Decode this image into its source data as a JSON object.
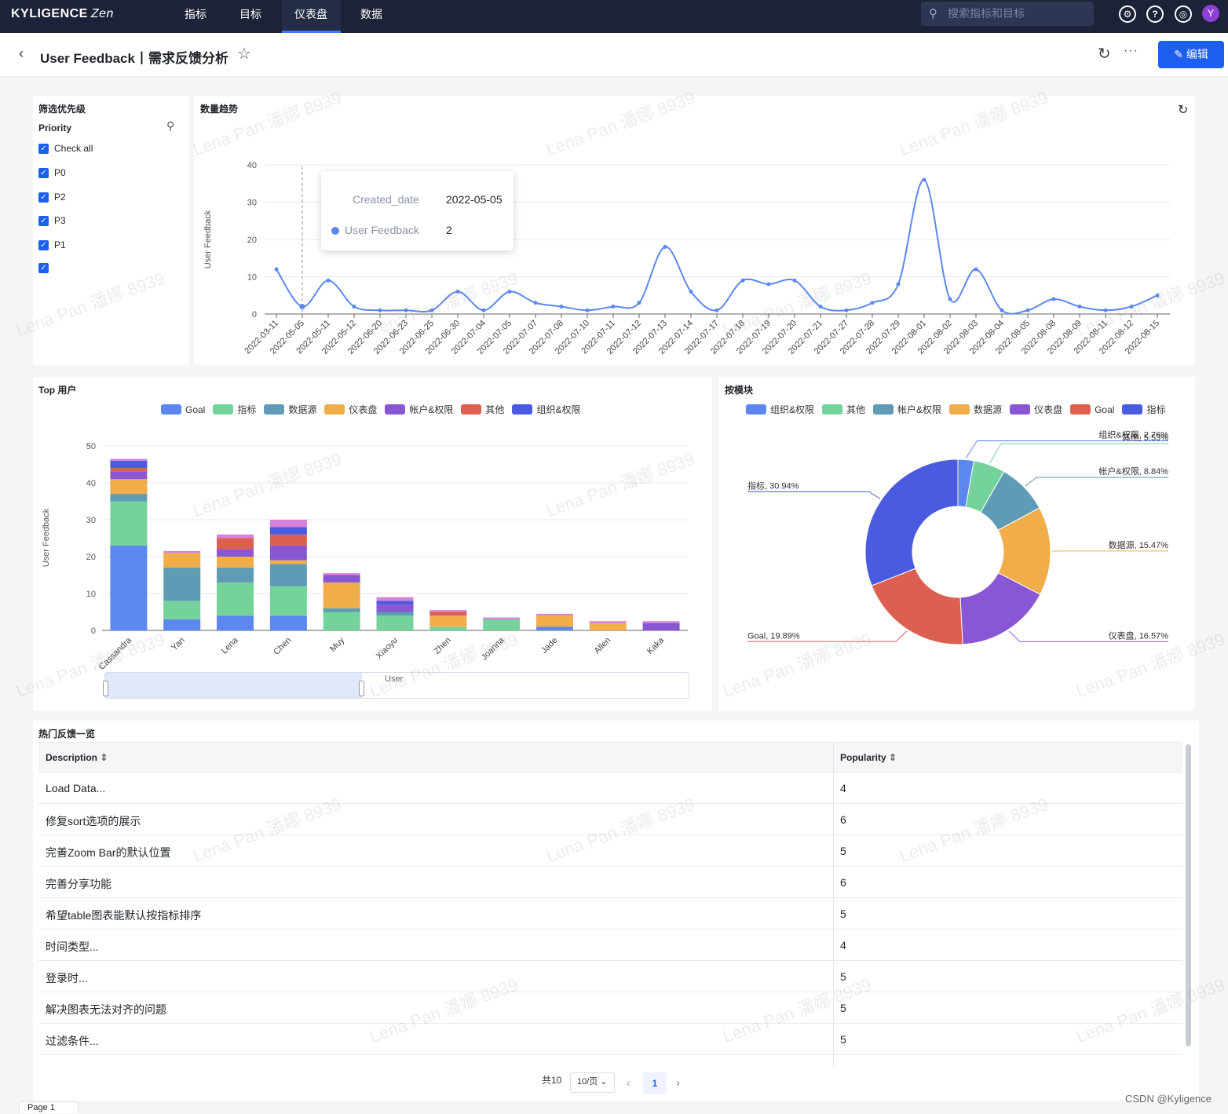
{
  "app": {
    "logo": "KYLIGENCE",
    "logo_sub": "Zen"
  },
  "nav": {
    "tabs": [
      "指标",
      "目标",
      "仪表盘",
      "数据"
    ],
    "active": 2,
    "search_placeholder": "搜索指标和目标",
    "avatar": "Y"
  },
  "header": {
    "title": "User Feedback丨需求反馈分析",
    "edit_label": "编辑"
  },
  "filter": {
    "title": "筛选优先级",
    "field": "Priority",
    "items": [
      "Check all",
      "P0",
      "P2",
      "P3",
      "P1",
      ""
    ]
  },
  "trend": {
    "title": "数量趋势",
    "tooltip": {
      "key1": "Created_date",
      "value1": "2022-05-05",
      "key2": "User Feedback",
      "value2": "2"
    }
  },
  "top_users": {
    "title": "Top 用户",
    "x_caption": "User"
  },
  "modules": {
    "title": "按模块"
  },
  "table": {
    "title": "热门反馈一览",
    "columns": [
      "Description",
      "Popularity"
    ],
    "rows": [
      [
        "Load Data...",
        "4"
      ],
      [
        "修复sort选项的展示",
        "6"
      ],
      [
        "完善Zoom Bar的默认位置",
        "5"
      ],
      [
        "完善分享功能",
        "6"
      ],
      [
        "希望table图表能默认按指标排序",
        "5"
      ],
      [
        "时间类型...",
        "4"
      ],
      [
        "登录时...",
        "5"
      ],
      [
        "解决图表无法对齐的问题",
        "5"
      ],
      [
        "过滤条件...",
        "5"
      ]
    ]
  },
  "pagination": {
    "total": "共10",
    "page_size": "10/页",
    "current": "1"
  },
  "footer": {
    "sheet_tab": "Page 1",
    "credit": "CSDN @Kyligence"
  },
  "watermark_text": "Lena Pan 潘娜 8939",
  "colors": {
    "accent": "#1d5ff0",
    "nav_bg": "#1c2238"
  },
  "chart_data": [
    {
      "type": "line",
      "title": "数量趋势",
      "ylabel": "User Feedback",
      "ylim": [
        0,
        40
      ],
      "yticks": [
        0,
        10,
        20,
        30,
        40
      ],
      "x": [
        "2022-03-11",
        "2022-05-05",
        "2022-05-11",
        "2022-05-12",
        "2022-06-20",
        "2022-06-23",
        "2022-06-25",
        "2022-06-30",
        "2022-07-04",
        "2022-07-05",
        "2022-07-07",
        "2022-07-08",
        "2022-07-10",
        "2022-07-11",
        "2022-07-12",
        "2022-07-13",
        "2022-07-14",
        "2022-07-17",
        "2022-07-18",
        "2022-07-19",
        "2022-07-20",
        "2022-07-21",
        "2022-07-27",
        "2022-07-28",
        "2022-07-29",
        "2022-08-01",
        "2022-08-02",
        "2022-08-03",
        "2022-08-04",
        "2022-08-05",
        "2022-08-08",
        "2022-08-09",
        "2022-08-11",
        "2022-08-12",
        "2022-08-15"
      ],
      "series": [
        {
          "name": "User Feedback",
          "color": "#5b87ee",
          "values": [
            12,
            2,
            9,
            2,
            1,
            1,
            1,
            6,
            1,
            6,
            3,
            2,
            1,
            2,
            3,
            18,
            6,
            1,
            9,
            8,
            9,
            2,
            1,
            3,
            8,
            36,
            4,
            12,
            1,
            1,
            4,
            2,
            1,
            2,
            5
          ]
        }
      ]
    },
    {
      "type": "bar",
      "stacked": true,
      "title": "Top 用户",
      "xlabel": "User",
      "ylabel": "User Feedback",
      "ylim": [
        0,
        50
      ],
      "yticks": [
        0,
        10,
        20,
        30,
        40,
        50
      ],
      "categories": [
        "Cassandra",
        "Yan",
        "Lena",
        "Chen",
        "Muy",
        "Xiaoyu",
        "Zhen",
        "Joanna",
        "Jade",
        "Allen",
        "Kaka"
      ],
      "series": [
        {
          "name": "Goal",
          "color": "#5b87ee",
          "values": [
            23,
            3,
            4,
            4,
            0,
            0,
            0,
            0,
            1,
            0,
            0
          ]
        },
        {
          "name": "指标",
          "color": "#74d39b",
          "values": [
            12,
            5,
            9,
            8,
            5,
            4,
            1,
            3,
            0,
            0,
            0
          ]
        },
        {
          "name": "数据源",
          "color": "#5f9bb5",
          "values": [
            2,
            9,
            4,
            6,
            1,
            1,
            0,
            0,
            0,
            0,
            0
          ]
        },
        {
          "name": "仪表盘",
          "color": "#f0ad4a",
          "values": [
            4,
            4,
            3,
            1,
            7,
            0,
            3,
            0,
            3,
            2,
            0
          ]
        },
        {
          "name": "帐户&权限",
          "color": "#8a57d4",
          "values": [
            2,
            0,
            2,
            4,
            2,
            2,
            0,
            0,
            0,
            0,
            2
          ]
        },
        {
          "name": "其他",
          "color": "#dd5f50",
          "values": [
            1,
            0,
            3,
            3,
            0,
            0,
            1,
            0,
            0,
            0,
            0
          ]
        },
        {
          "name": "组织&权限",
          "color": "#4b5be0",
          "values": [
            2,
            0,
            0,
            2,
            0,
            1,
            0,
            0,
            0,
            0,
            0
          ]
        },
        {
          "name": "",
          "color": "#d980d8",
          "values": [
            0.5,
            0.5,
            1,
            2,
            0.5,
            1,
            0.5,
            0.5,
            0.5,
            0.5,
            0.5
          ]
        }
      ]
    },
    {
      "type": "pie",
      "donut": true,
      "title": "按模块",
      "legend": [
        "组织&权限",
        "其他",
        "帐户&权限",
        "数据源",
        "仪表盘",
        "Goal",
        "指标"
      ],
      "slices": [
        {
          "name": "组织&权限",
          "value": 2.76,
          "label": "组织&权限, 2.76%",
          "color": "#5b87ee"
        },
        {
          "name": "其他",
          "value": 5.53,
          "label": "其他, 5.53%",
          "color": "#74d39b"
        },
        {
          "name": "帐户&权限",
          "value": 8.84,
          "label": "帐户&权限, 8.84%",
          "color": "#5f9bb5"
        },
        {
          "name": "数据源",
          "value": 15.47,
          "label": "数据源, 15.47%",
          "color": "#f0ad4a"
        },
        {
          "name": "仪表盘",
          "value": 16.57,
          "label": "仪表盘, 16.57%",
          "color": "#8a57d4"
        },
        {
          "name": "Goal",
          "value": 19.89,
          "label": "Goal, 19.89%",
          "color": "#dd5f50"
        },
        {
          "name": "指标",
          "value": 30.94,
          "label": "指标, 30.94%",
          "color": "#4b5be0"
        }
      ]
    }
  ]
}
